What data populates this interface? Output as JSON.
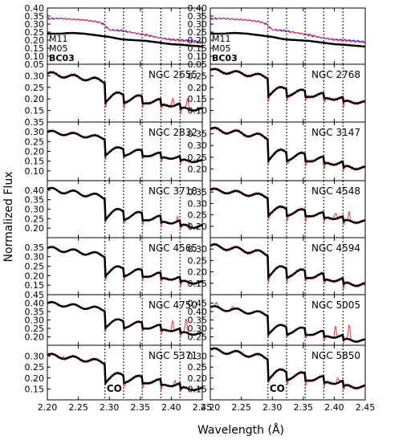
{
  "figure": {
    "ylabel": "Normalized Flux",
    "xlabel": "Wavelength (Å)"
  },
  "chart_data": {
    "type": "line",
    "xlim": [
      2.2,
      2.45
    ],
    "x_ticks": [
      "2.20",
      "2.25",
      "2.30",
      "2.35",
      "2.40",
      "2.45"
    ],
    "xlabel": "Wavelength (Å)",
    "ylabel": "Normalized Flux",
    "feature_lines_x": [
      2.293,
      2.323,
      2.353,
      2.383,
      2.414
    ],
    "feature_label": "CO",
    "colors": {
      "model": "#000000",
      "data": "#ff3333",
      "m11": "#0000ff",
      "m05": "#ff4040"
    },
    "model_spectra": {
      "legend": [
        {
          "name": "M11",
          "color": "#0000ff"
        },
        {
          "name": "M05",
          "color": "#ff4040"
        },
        {
          "name": "BC03",
          "color": "#000000"
        }
      ],
      "ylim": [
        0.05,
        0.4
      ],
      "y_ticks": [
        "0.05",
        "0.10",
        "0.15",
        "0.20",
        "0.25",
        "0.30",
        "0.35",
        "0.40"
      ],
      "series": [
        {
          "name": "M11",
          "x": [
            2.2,
            2.22,
            2.24,
            2.26,
            2.28,
            2.29,
            2.3,
            2.32,
            2.34,
            2.36,
            2.38,
            2.4,
            2.42,
            2.45
          ],
          "values": [
            0.335,
            0.335,
            0.33,
            0.325,
            0.315,
            0.3,
            0.265,
            0.26,
            0.245,
            0.23,
            0.215,
            0.205,
            0.2,
            0.19
          ]
        },
        {
          "name": "M05",
          "x": [
            2.2,
            2.22,
            2.24,
            2.26,
            2.28,
            2.29,
            2.3,
            2.32,
            2.34,
            2.36,
            2.38,
            2.4,
            2.42,
            2.45
          ],
          "values": [
            0.33,
            0.335,
            0.33,
            0.325,
            0.315,
            0.305,
            0.265,
            0.255,
            0.245,
            0.235,
            0.215,
            0.2,
            0.195,
            0.185
          ]
        },
        {
          "name": "BC03",
          "x": [
            2.2,
            2.22,
            2.24,
            2.26,
            2.28,
            2.29,
            2.3,
            2.32,
            2.34,
            2.36,
            2.38,
            2.4,
            2.42,
            2.45
          ],
          "values": [
            0.24,
            0.24,
            0.245,
            0.24,
            0.23,
            0.225,
            0.22,
            0.205,
            0.2,
            0.195,
            0.185,
            0.175,
            0.17,
            0.16
          ]
        }
      ]
    },
    "galaxies": [
      {
        "name": "NGC 2655",
        "ylim": [
          0.1,
          0.35
        ],
        "y_ticks": [
          "0.15",
          "0.20",
          "0.25",
          "0.30"
        ],
        "f_start": 0.31,
        "f_end": 0.16,
        "emission": [
          {
            "x": 2.402,
            "h": 0.035
          },
          {
            "x": 2.426,
            "h": 0.045
          }
        ]
      },
      {
        "name": "NGC 2768",
        "ylim": [
          0.05,
          0.3
        ],
        "y_ticks": [
          "0.10",
          "0.15",
          "0.20",
          "0.25"
        ],
        "f_start": 0.275,
        "f_end": 0.14,
        "emission": []
      },
      {
        "name": "NGC 2832",
        "ylim": [
          0.05,
          0.35
        ],
        "y_ticks": [
          "0.10",
          "0.15",
          "0.20",
          "0.25",
          "0.30",
          "0.35"
        ],
        "f_start": 0.3,
        "f_end": 0.155,
        "emission": []
      },
      {
        "name": "NGC 3147",
        "ylim": [
          0.15,
          0.4
        ],
        "y_ticks": [
          "0.20",
          "0.25",
          "0.30",
          "0.35"
        ],
        "f_start": 0.37,
        "f_end": 0.21,
        "emission": []
      },
      {
        "name": "NGC 3718",
        "ylim": [
          0.15,
          0.45
        ],
        "y_ticks": [
          "0.20",
          "0.25",
          "0.30",
          "0.35",
          "0.40"
        ],
        "f_start": 0.405,
        "f_end": 0.215,
        "emission": [
          {
            "x": 2.41,
            "h": 0.02
          },
          {
            "x": 2.428,
            "h": 0.02
          }
        ]
      },
      {
        "name": "NGC 4548",
        "ylim": [
          0.15,
          0.4
        ],
        "y_ticks": [
          "0.20",
          "0.25",
          "0.30",
          "0.35"
        ],
        "f_start": 0.36,
        "f_end": 0.225,
        "emission": [
          {
            "x": 2.402,
            "h": 0.03
          },
          {
            "x": 2.424,
            "h": 0.035
          }
        ]
      },
      {
        "name": "NGC 4565",
        "ylim": [
          0.1,
          0.4
        ],
        "y_ticks": [
          "0.15",
          "0.20",
          "0.25",
          "0.30",
          "0.35"
        ],
        "f_start": 0.345,
        "f_end": 0.17,
        "emission": []
      },
      {
        "name": "NGC 4594",
        "ylim": [
          0.1,
          0.35
        ],
        "y_ticks": [
          "0.15",
          "0.20",
          "0.25",
          "0.30"
        ],
        "f_start": 0.315,
        "f_end": 0.15,
        "emission": []
      },
      {
        "name": "NGC 4750",
        "ylim": [
          0.15,
          0.45
        ],
        "y_ticks": [
          "0.20",
          "0.25",
          "0.30",
          "0.35",
          "0.40",
          "0.45"
        ],
        "f_start": 0.4,
        "f_end": 0.225,
        "emission": [
          {
            "x": 2.402,
            "h": 0.06
          },
          {
            "x": 2.424,
            "h": 0.09
          }
        ]
      },
      {
        "name": "NGC 5005",
        "ylim": [
          0.2,
          0.5
        ],
        "y_ticks": [
          "0.25",
          "0.30",
          "0.35",
          "0.40",
          "0.45"
        ],
        "f_start": 0.425,
        "f_end": 0.235,
        "emission": [
          {
            "x": 2.21,
            "h": 0.03
          },
          {
            "x": 2.235,
            "h": 0.02
          },
          {
            "x": 2.402,
            "h": 0.07
          },
          {
            "x": 2.424,
            "h": 0.09
          }
        ]
      },
      {
        "name": "NGC 5371",
        "ylim": [
          0.1,
          0.35
        ],
        "y_ticks": [
          "0.15",
          "0.20",
          "0.25",
          "0.30"
        ],
        "f_start": 0.305,
        "f_end": 0.155,
        "emission": [
          {
            "x": 2.225,
            "h": 0.01
          },
          {
            "x": 2.406,
            "h": 0.02
          }
        ]
      },
      {
        "name": "NGC 5850",
        "ylim": [
          0.1,
          0.35
        ],
        "y_ticks": [
          "0.15",
          "0.20",
          "0.25",
          "0.30"
        ],
        "f_start": 0.33,
        "f_end": 0.165,
        "emission": [
          {
            "x": 2.406,
            "h": 0.025
          }
        ]
      }
    ]
  }
}
